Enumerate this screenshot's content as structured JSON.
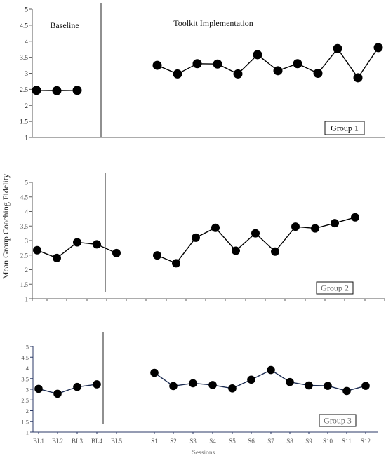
{
  "chart_data": [
    {
      "type": "line",
      "phase_labels": [
        "Baseline",
        "Toolkit Implementation"
      ],
      "group_label": "Group 1",
      "ylim": [
        1,
        5
      ],
      "yticks": [
        "1",
        "1.5",
        "2",
        "2.5",
        "3",
        "3.5",
        "4",
        "4.5",
        "5"
      ],
      "series": [
        {
          "phase": "baseline",
          "sessions": [
            "BL1",
            "BL2",
            "BL3"
          ],
          "values": [
            2.47,
            2.46,
            2.47
          ]
        },
        {
          "phase": "intervention",
          "sessions": [
            "S1",
            "S2",
            "S3",
            "S4",
            "S5",
            "S6",
            "S7",
            "S8",
            "S9",
            "S10",
            "S11",
            "S12"
          ],
          "values": [
            3.25,
            2.98,
            3.3,
            3.29,
            2.98,
            3.58,
            3.08,
            3.3,
            3.0,
            3.77,
            2.86,
            3.8
          ]
        }
      ]
    },
    {
      "type": "line",
      "group_label": "Group 2",
      "ylim": [
        1,
        5
      ],
      "yticks": [
        "1",
        "1.5",
        "2",
        "2.5",
        "3",
        "3.5",
        "4",
        "4.5",
        "5"
      ],
      "series": [
        {
          "phase": "baseline",
          "sessions": [
            "BL1",
            "BL2",
            "BL3",
            "BL4",
            "BL5"
          ],
          "values": [
            2.67,
            2.4,
            2.94,
            2.87,
            2.57
          ]
        },
        {
          "phase": "intervention",
          "sessions": [
            "S1",
            "S2",
            "S3",
            "S4",
            "S5",
            "S6",
            "S7",
            "S8",
            "S9",
            "S10",
            "S11"
          ],
          "values": [
            2.49,
            2.22,
            3.1,
            3.44,
            2.65,
            3.25,
            2.62,
            3.48,
            3.42,
            3.6,
            3.8
          ]
        }
      ]
    },
    {
      "type": "line",
      "group_label": "Group 3",
      "ylim": [
        1,
        5
      ],
      "yticks": [
        "1",
        "1.5",
        "2",
        "2.5",
        "3",
        "3.5",
        "4",
        "4.5",
        "5"
      ],
      "series": [
        {
          "phase": "baseline",
          "sessions": [
            "BL1",
            "BL2",
            "BL3",
            "BL4"
          ],
          "values": [
            3.02,
            2.79,
            3.11,
            3.23
          ]
        },
        {
          "phase": "intervention",
          "sessions": [
            "S1",
            "S2",
            "S3",
            "S4",
            "S5",
            "S6",
            "S7",
            "S8",
            "S9",
            "S10",
            "S11",
            "S12"
          ],
          "values": [
            3.77,
            3.15,
            3.28,
            3.2,
            3.04,
            3.45,
            3.9,
            3.34,
            3.18,
            3.16,
            2.92,
            3.16
          ]
        }
      ]
    }
  ],
  "ylabel": "Mean Group Coaching Fidelity",
  "xlabel": "Sessions",
  "x_categories": [
    "BL1",
    "BL2",
    "BL3",
    "BL4",
    "BL5",
    "S1",
    "S2",
    "S3",
    "S4",
    "S5",
    "S6",
    "S7",
    "S8",
    "S9",
    "S10",
    "S11",
    "S12"
  ],
  "colors": {
    "axis": "#5a5a5a",
    "axis_bottom": "#2b3a67",
    "marker": "#000000",
    "line": "#000000",
    "line_panel3": "#1a2a50",
    "tick_text": "#555555",
    "tick_text_dark": "#222222",
    "group_box_text_1": "#000000",
    "group_box_text_other": "#666666"
  }
}
